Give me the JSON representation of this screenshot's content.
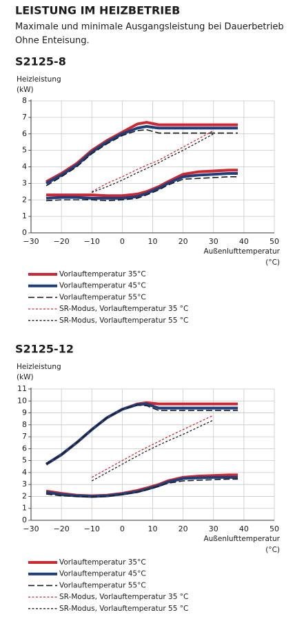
{
  "header": {
    "title": "LEISTUNG IM HEIZBETRIEB",
    "subtitle": [
      "Maximale und minimale Ausgangsleistung bei Dauerbetrieb",
      "Ohne Enteisung."
    ]
  },
  "chart_data": [
    {
      "type": "line",
      "title": "S2125-8",
      "y_label": [
        "Heizleistung",
        "(kW)"
      ],
      "x_label": [
        "Außenlufttemperatur",
        "(°C)"
      ],
      "x": [
        -25,
        -20,
        -15,
        -10,
        -5,
        0,
        5,
        8,
        12,
        15,
        20,
        25,
        30,
        35,
        38
      ],
      "xlim": [
        -30,
        50
      ],
      "xticks": [
        {
          "value": -30,
          "label": "−30"
        },
        {
          "value": -20,
          "label": "−20"
        },
        {
          "value": -10,
          "label": "−10"
        },
        0,
        10,
        20,
        30,
        40,
        50
      ],
      "ylim": [
        0,
        8
      ],
      "yticks": [
        0,
        1,
        2,
        3,
        4,
        5,
        6,
        7,
        8
      ],
      "grid": true,
      "series": [
        {
          "name": "Vorlauftemperatur 35°C",
          "color": "#d0262f",
          "dash": "solid",
          "values": [
            3.1,
            3.6,
            4.2,
            5.0,
            5.6,
            6.1,
            6.6,
            6.7,
            6.55,
            6.55,
            6.55,
            6.55,
            6.55,
            6.55,
            6.55
          ],
          "values_min": [
            2.3,
            2.3,
            2.3,
            2.3,
            2.25,
            2.25,
            2.35,
            2.5,
            2.8,
            3.1,
            3.55,
            3.7,
            3.75,
            3.8,
            3.8
          ]
        },
        {
          "name": "Vorlauftemperatur 45°C",
          "color": "#1f3f7c",
          "dash": "solid",
          "values": [
            3.0,
            3.5,
            4.1,
            4.9,
            5.5,
            6.0,
            6.35,
            6.45,
            6.35,
            6.35,
            6.35,
            6.35,
            6.35,
            6.35,
            6.35
          ],
          "values_min": [
            2.1,
            2.15,
            2.15,
            2.1,
            2.1,
            2.1,
            2.2,
            2.4,
            2.7,
            3.0,
            3.4,
            3.5,
            3.55,
            3.6,
            3.6
          ]
        },
        {
          "name": "Vorlauftemperatur 55°C",
          "color": "#1a1a1a",
          "dash": "dashed",
          "values": [
            2.85,
            3.4,
            4.0,
            4.8,
            5.4,
            5.9,
            6.2,
            6.25,
            6.05,
            6.05,
            6.05,
            6.05,
            6.05,
            6.05,
            6.05
          ],
          "values_min": [
            1.95,
            2.0,
            2.0,
            2.0,
            1.95,
            2.0,
            2.1,
            2.3,
            2.6,
            2.9,
            3.25,
            3.3,
            3.35,
            3.4,
            3.4
          ]
        },
        {
          "name": "SR-Modus, Vorlauftemperatur 35 °C",
          "color": "#d0262f",
          "dash": "dotted",
          "values": [
            null,
            null,
            null,
            2.5,
            3.0,
            3.4,
            3.85,
            4.1,
            4.4,
            4.7,
            5.2,
            5.7,
            6.2,
            null,
            null
          ]
        },
        {
          "name": "SR-Modus, Vorlauftemperatur 55 °C",
          "color": "#1a1a1a",
          "dash": "dotted",
          "values": [
            null,
            null,
            null,
            2.45,
            2.8,
            3.2,
            3.65,
            3.9,
            4.25,
            4.55,
            5.0,
            5.5,
            6.0,
            null,
            null
          ]
        }
      ]
    },
    {
      "type": "line",
      "title": "S2125-12",
      "y_label": [
        "Heizleistung",
        "(kW)"
      ],
      "x_label": [
        "Außenlufttemperatur",
        "(°C)"
      ],
      "x": [
        -25,
        -20,
        -15,
        -10,
        -5,
        0,
        5,
        8,
        12,
        15,
        20,
        25,
        30,
        35,
        38
      ],
      "xlim": [
        -30,
        50
      ],
      "xticks": [
        {
          "value": -30,
          "label": "−30"
        },
        {
          "value": -20,
          "label": "−20"
        },
        {
          "value": -10,
          "label": "−10"
        },
        0,
        10,
        20,
        30,
        40,
        50
      ],
      "ylim": [
        0,
        11
      ],
      "yticks": [
        0,
        1,
        2,
        3,
        4,
        5,
        6,
        7,
        8,
        9,
        10,
        11
      ],
      "grid": true,
      "series": [
        {
          "name": "Vorlauftemperatur 35°C",
          "color": "#d0262f",
          "dash": "solid",
          "values": [
            4.7,
            5.5,
            6.5,
            7.6,
            8.6,
            9.3,
            9.75,
            9.85,
            9.75,
            9.75,
            9.75,
            9.75,
            9.75,
            9.75,
            9.75
          ],
          "values_min": [
            2.45,
            2.25,
            2.1,
            2.05,
            2.1,
            2.25,
            2.5,
            2.7,
            3.0,
            3.3,
            3.6,
            3.7,
            3.75,
            3.8,
            3.8
          ]
        },
        {
          "name": "Vorlauftemperatur 45°C",
          "color": "#1f3f7c",
          "dash": "solid",
          "values": [
            4.7,
            5.5,
            6.5,
            7.6,
            8.6,
            9.3,
            9.7,
            9.75,
            9.4,
            9.4,
            9.4,
            9.4,
            9.4,
            9.4,
            9.4
          ],
          "values_min": [
            2.35,
            2.15,
            2.05,
            2.0,
            2.05,
            2.2,
            2.4,
            2.6,
            2.9,
            3.2,
            3.5,
            3.55,
            3.6,
            3.6,
            3.6
          ]
        },
        {
          "name": "Vorlauftemperatur 55°C",
          "color": "#1a1a1a",
          "dash": "dashed",
          "values": [
            4.7,
            5.5,
            6.5,
            7.6,
            8.6,
            9.3,
            9.65,
            9.6,
            9.2,
            9.2,
            9.2,
            9.2,
            9.2,
            9.2,
            9.2
          ],
          "values_min": [
            2.2,
            2.05,
            2.0,
            1.95,
            2.0,
            2.15,
            2.35,
            2.55,
            2.85,
            3.1,
            3.3,
            3.35,
            3.4,
            3.45,
            3.45
          ]
        },
        {
          "name": "SR-Modus, Vorlauftemperatur 35 °C",
          "color": "#d0262f",
          "dash": "dotted",
          "values": [
            null,
            null,
            null,
            3.6,
            4.3,
            5.0,
            5.7,
            6.1,
            6.6,
            7.0,
            7.6,
            8.2,
            8.8,
            null,
            null
          ]
        },
        {
          "name": "SR-Modus, Vorlauftemperatur 55 °C",
          "color": "#1a1a1a",
          "dash": "dotted",
          "values": [
            null,
            null,
            null,
            3.3,
            4.0,
            4.7,
            5.4,
            5.8,
            6.3,
            6.65,
            7.2,
            7.8,
            8.4,
            null,
            null
          ]
        }
      ]
    }
  ]
}
